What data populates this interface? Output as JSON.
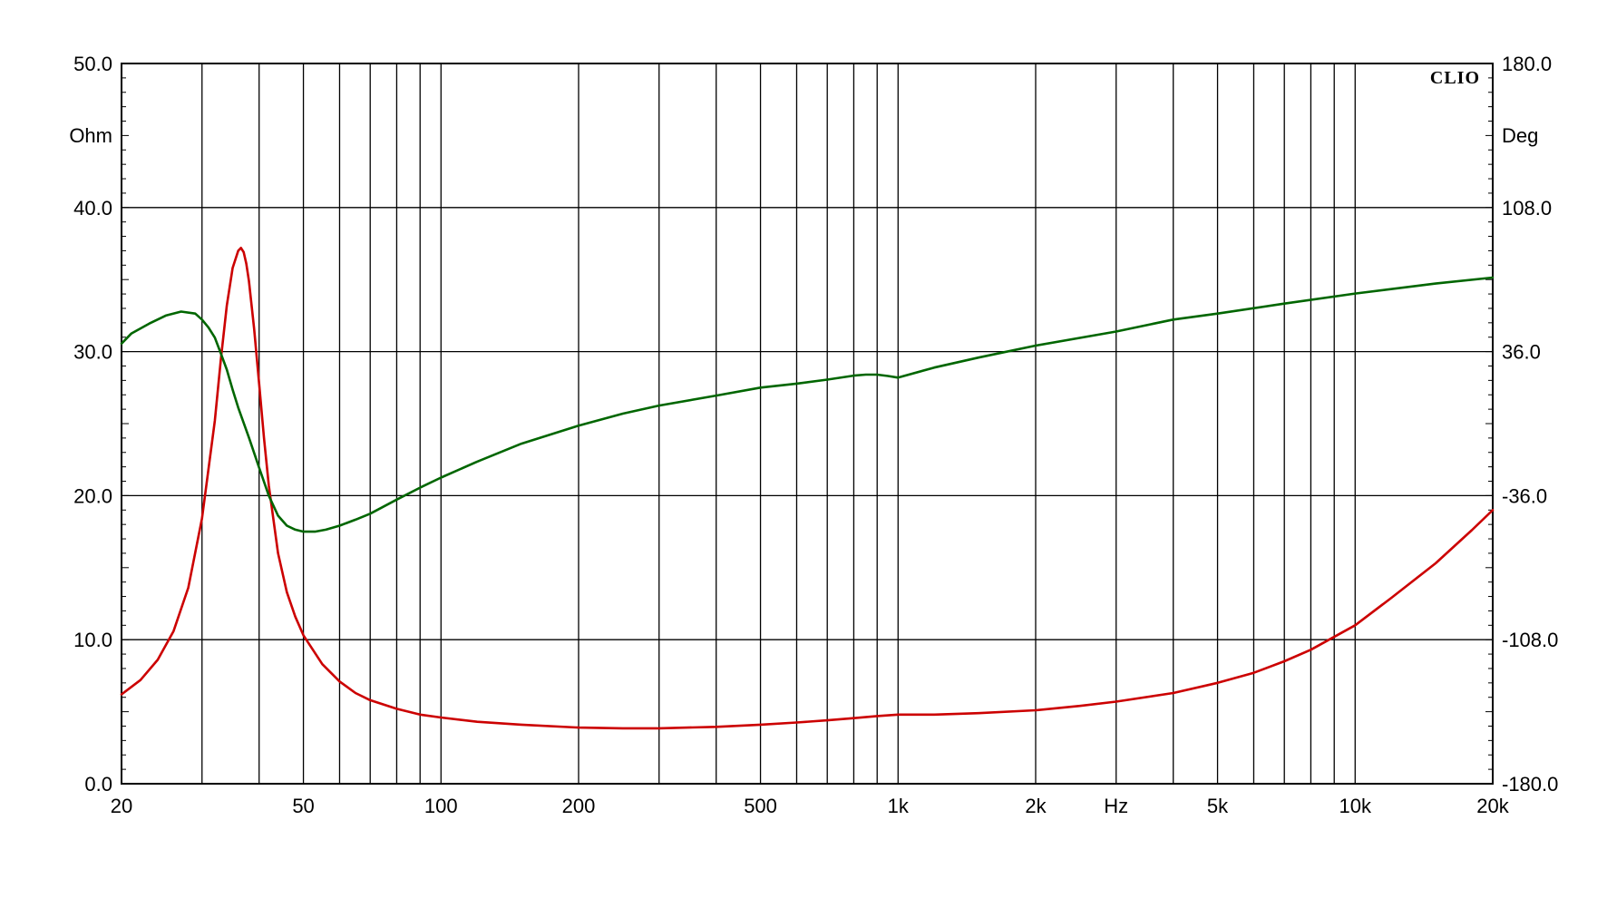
{
  "chart_data": {
    "type": "line",
    "brand": "CLIO",
    "x_scale": "log",
    "xlim": [
      20,
      20000
    ],
    "x_tick_values": [
      20,
      50,
      100,
      200,
      500,
      1000,
      2000,
      5000,
      10000,
      20000
    ],
    "x_tick_labels": [
      "20",
      "50",
      "100",
      "200",
      "500",
      "1k",
      "2k",
      "5k",
      "10k",
      "20k"
    ],
    "x_unit": "Hz",
    "x_unit_position_value": 3000,
    "x_gridlines": [
      20,
      30,
      40,
      50,
      60,
      70,
      80,
      90,
      100,
      200,
      300,
      400,
      500,
      600,
      700,
      800,
      900,
      1000,
      2000,
      3000,
      4000,
      5000,
      6000,
      7000,
      8000,
      9000,
      10000,
      20000
    ],
    "y_left": {
      "unit": "Ohm",
      "lim": [
        0,
        50
      ],
      "tick_values": [
        0,
        10,
        20,
        30,
        40,
        50
      ],
      "tick_labels": [
        "0.0",
        "10.0",
        "20.0",
        "30.0",
        "40.0",
        "50.0"
      ]
    },
    "y_right": {
      "unit": "Deg",
      "lim": [
        -180,
        180
      ],
      "tick_values": [
        -180,
        -108,
        -36,
        36,
        108,
        180
      ],
      "tick_labels": [
        "-180.0",
        "-108.0",
        "-36.0",
        "36.0",
        "108.0",
        "180.0"
      ]
    },
    "grid": true,
    "colors": {
      "impedance": "#cc0000",
      "phase": "#006600",
      "grid": "#000000"
    },
    "series": [
      {
        "axis": "left",
        "x": [
          20,
          22,
          24,
          26,
          28,
          30,
          32,
          33,
          34,
          35,
          36,
          36.5,
          37,
          37.5,
          38,
          39,
          40,
          41,
          42,
          44,
          46,
          48,
          50,
          55,
          60,
          65,
          70,
          80,
          90,
          100,
          120,
          150,
          200,
          250,
          300,
          400,
          500,
          600,
          700,
          800,
          900,
          1000,
          1200,
          1500,
          2000,
          2500,
          3000,
          4000,
          5000,
          6000,
          7000,
          8000,
          10000,
          12000,
          15000,
          18000,
          20000
        ],
        "y": [
          6.2,
          7.2,
          8.6,
          10.6,
          13.6,
          18.4,
          25.2,
          29.5,
          33.2,
          35.8,
          37.0,
          37.2,
          36.9,
          36.1,
          34.9,
          31.6,
          27.8,
          24.0,
          20.7,
          16.0,
          13.3,
          11.6,
          10.3,
          8.3,
          7.1,
          6.3,
          5.8,
          5.2,
          4.8,
          4.6,
          4.3,
          4.1,
          3.9,
          3.85,
          3.85,
          3.95,
          4.1,
          4.25,
          4.4,
          4.55,
          4.7,
          4.8,
          4.8,
          4.9,
          5.1,
          5.4,
          5.7,
          6.3,
          7.0,
          7.7,
          8.5,
          9.3,
          11.0,
          12.9,
          15.3,
          17.6,
          19.0
        ]
      },
      {
        "axis": "right",
        "x": [
          20,
          21,
          23,
          25,
          27,
          29,
          30,
          31,
          32,
          33,
          34,
          35,
          36,
          38,
          40,
          42,
          44,
          46,
          48,
          50,
          53,
          56,
          60,
          65,
          70,
          80,
          90,
          100,
          120,
          150,
          200,
          250,
          300,
          400,
          500,
          600,
          700,
          800,
          850,
          900,
          950,
          1000,
          1200,
          1500,
          2000,
          3000,
          4000,
          5000,
          7000,
          10000,
          15000,
          20000
        ],
        "y": [
          40,
          45,
          50,
          54,
          56,
          55,
          52,
          48,
          43,
          35,
          27,
          17,
          8,
          -7,
          -22,
          -36,
          -46,
          -51,
          -53,
          -54,
          -54,
          -53,
          -51,
          -48,
          -45,
          -38,
          -32,
          -27,
          -19,
          -10,
          -1,
          5,
          9,
          14,
          18,
          20,
          22,
          24,
          24.5,
          24.5,
          23.8,
          23,
          28,
          33,
          39,
          46,
          52,
          55,
          60,
          65,
          70,
          73
        ]
      }
    ]
  }
}
